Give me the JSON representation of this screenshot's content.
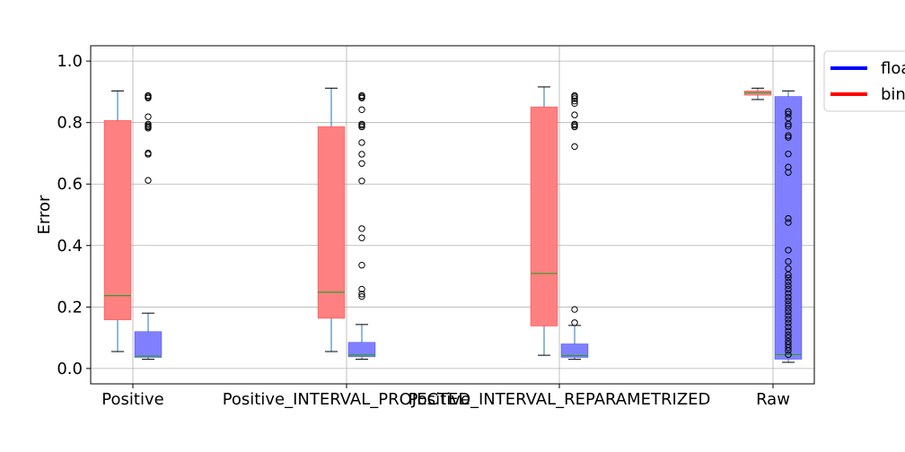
{
  "chart_data": {
    "type": "box",
    "title": "",
    "xlabel": "",
    "ylabel": "Error",
    "ylim": [
      -0.05,
      1.05
    ],
    "yticks": [
      0.0,
      0.2,
      0.4,
      0.6,
      0.8,
      1.0
    ],
    "ytick_labels": [
      "0.0",
      "0.2",
      "0.4",
      "0.6",
      "0.8",
      "1.0"
    ],
    "categories": [
      "Positive",
      "Positive_INTERVAL_PROJECTED",
      "Positive_INTERVAL_REPARAMETRIZED",
      "Raw"
    ],
    "grid": true,
    "legend_placement": "outside-top-right",
    "series": [
      {
        "name": "bin",
        "color": "#ff0000",
        "box_fill": "#ff8080",
        "boxes": [
          {
            "category": "Positive",
            "whisker_low": 0.055,
            "q1": 0.158,
            "median": 0.237,
            "q3": 0.807,
            "whisker_high": 0.903,
            "outliers": []
          },
          {
            "category": "Positive_INTERVAL_PROJECTED",
            "whisker_low": 0.055,
            "q1": 0.163,
            "median": 0.248,
            "q3": 0.787,
            "whisker_high": 0.912,
            "outliers": []
          },
          {
            "category": "Positive_INTERVAL_REPARAMETRIZED",
            "whisker_low": 0.043,
            "q1": 0.138,
            "median": 0.309,
            "q3": 0.851,
            "whisker_high": 0.916,
            "outliers": []
          },
          {
            "category": "Raw",
            "whisker_low": 0.875,
            "q1": 0.889,
            "median": 0.897,
            "q3": 0.903,
            "whisker_high": 0.912,
            "outliers": []
          }
        ]
      },
      {
        "name": "float",
        "color": "#0000ff",
        "box_fill": "#8080ff",
        "boxes": [
          {
            "category": "Positive",
            "whisker_low": 0.03,
            "q1": 0.036,
            "median": 0.04,
            "q3": 0.12,
            "whisker_high": 0.18,
            "outliers": [
              0.612,
              0.697,
              0.701,
              0.782,
              0.786,
              0.79,
              0.795,
              0.819,
              0.88,
              0.884,
              0.888
            ]
          },
          {
            "category": "Positive_INTERVAL_PROJECTED",
            "whisker_low": 0.03,
            "q1": 0.038,
            "median": 0.044,
            "q3": 0.085,
            "whisker_high": 0.143,
            "outliers": [
              0.234,
              0.242,
              0.258,
              0.336,
              0.425,
              0.455,
              0.61,
              0.667,
              0.697,
              0.735,
              0.786,
              0.791,
              0.795,
              0.842,
              0.88,
              0.884,
              0.888
            ]
          },
          {
            "category": "Positive_INTERVAL_REPARAMETRIZED",
            "whisker_low": 0.03,
            "q1": 0.036,
            "median": 0.042,
            "q3": 0.08,
            "whisker_high": 0.14,
            "outliers": [
              0.149,
              0.192,
              0.722,
              0.786,
              0.791,
              0.795,
              0.825,
              0.862,
              0.87,
              0.878,
              0.884,
              0.888
            ]
          },
          {
            "category": "Raw",
            "whisker_low": 0.02,
            "q1": 0.03,
            "median": 0.045,
            "q3": 0.885,
            "whisker_high": 0.903,
            "outliers": [
              0.045,
              0.058,
              0.068,
              0.078,
              0.088,
              0.1,
              0.11,
              0.122,
              0.135,
              0.148,
              0.16,
              0.172,
              0.185,
              0.196,
              0.208,
              0.22,
              0.232,
              0.245,
              0.258,
              0.27,
              0.282,
              0.295,
              0.305,
              0.325,
              0.348,
              0.385,
              0.475,
              0.488,
              0.638,
              0.655,
              0.698,
              0.752,
              0.758,
              0.788,
              0.795,
              0.815,
              0.828,
              0.836
            ]
          }
        ]
      }
    ],
    "legend": [
      {
        "name": "float",
        "color": "#0000ff"
      },
      {
        "name": "bin",
        "color": "#ff0000"
      }
    ]
  }
}
